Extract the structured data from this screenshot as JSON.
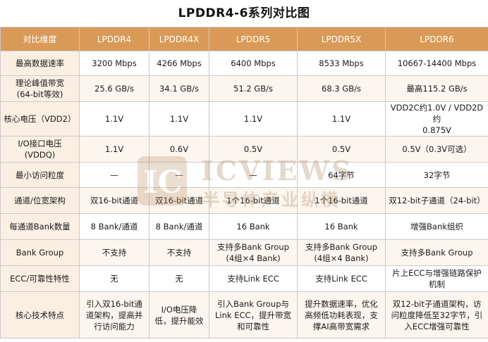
{
  "title": "LPDDR4-6系列对比图",
  "watermark": {
    "mark": "IC",
    "name_en": "ICVIEWS",
    "name_cn": "半导体产业纵横"
  },
  "headers": [
    "对比维度",
    "LPDDR4",
    "LPDDR4X",
    "LPDDR5",
    "LPDDR5X",
    "LPDDR6"
  ],
  "rows": [
    [
      "最高数据速率",
      "3200 Mbps",
      "4266 Mbps",
      "6400 Mbps",
      "8533 Mbps",
      "10667-14400 Mbps"
    ],
    [
      "理论峰值带宽\n(64-bit等效)",
      "25.6 GB/s",
      "34.1 GB/s",
      "51.2 GB/s",
      "68.3 GB/s",
      "最高115.2 GB/s"
    ],
    [
      "核心电压（VDD2）",
      "1.1V",
      "1.1V",
      "1.1V",
      "1.1V",
      "VDD2C约1.0V / VDD2D约\n0.875V"
    ],
    [
      "I/O接口电压\n(VDDQ)",
      "1.1V",
      "0.6V",
      "0.5V",
      "0.5V",
      "0.5V（0.3V可选）"
    ],
    [
      "最小访问粒度",
      "—",
      "—",
      "—",
      "64字节",
      "32字节"
    ],
    [
      "通道/位宽架构",
      "双16-bit通道",
      "双16-bit通道",
      "1个16-bit通道",
      "1个16-bit通道",
      "双12-bit子通道（24-bit）"
    ],
    [
      "每通道Bank数量",
      "8 Bank/通道",
      "8 Bank/通道",
      "16 Bank",
      "16 Bank",
      "增强Bank组织"
    ],
    [
      "Bank Group",
      "不支持",
      "不支持",
      "支持多Bank Group\n(4组×4 Bank)",
      "支持多Bank Group\n(4组×4 Bank)",
      "支持多Bank Group"
    ],
    [
      "ECC/可靠性特性",
      "无",
      "无",
      "支持Link ECC",
      "支持Link ECC",
      "片上ECC与增强链路保护\n机制"
    ],
    [
      "核心技术特点",
      "引入双16-bit通\n道架构，提高并\n行访问能力",
      "I/O电压降\n低，提升能效",
      "引入Bank Group与\nLink ECC，提升带宽\n和可靠性",
      "提升数据速率，优化\n高频低功耗表现，支\n撑AI高带宽需求",
      "双12-bit子通道架构，访\n问粒度降低至32字节，引\n入ECC增强可靠性"
    ]
  ],
  "colors": {
    "header_bg": "#d99a57",
    "label_bg": "#fbefe3",
    "alt_row_bg": "#fdf6ef",
    "border": "#c9c9c9"
  }
}
